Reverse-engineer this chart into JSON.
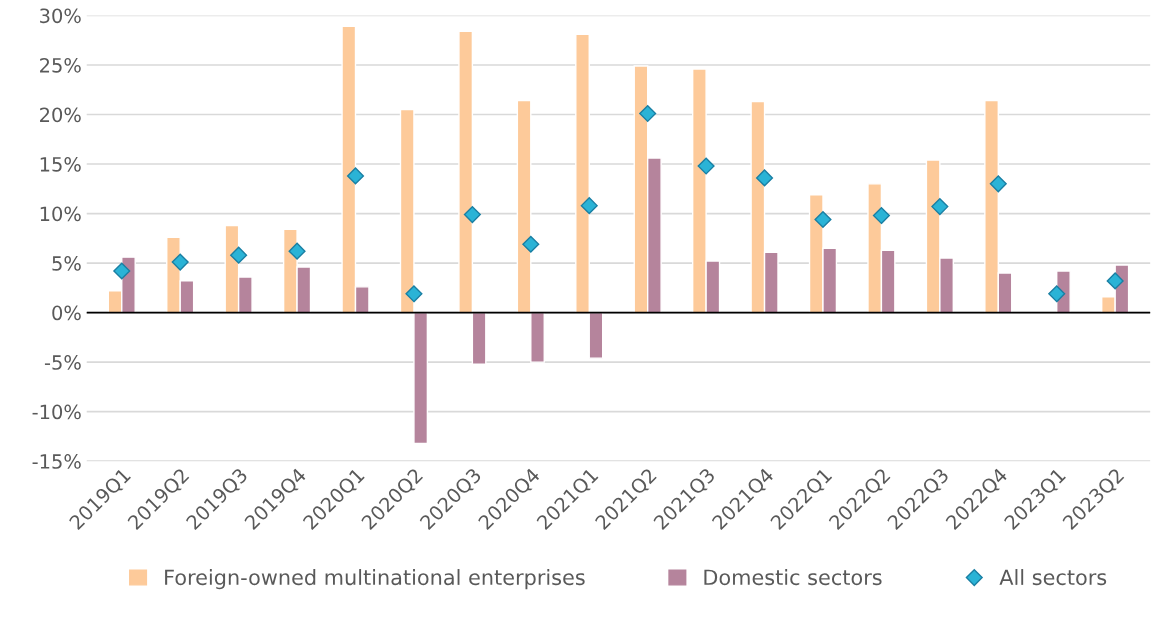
{
  "chart_data": {
    "type": "bar",
    "categories": [
      "2019Q1",
      "2019Q2",
      "2019Q3",
      "2019Q4",
      "2020Q1",
      "2020Q2",
      "2020Q3",
      "2020Q4",
      "2021Q1",
      "2021Q2",
      "2021Q3",
      "2021Q4",
      "2022Q1",
      "2022Q2",
      "2022Q3",
      "2022Q4",
      "2023Q1",
      "2023Q2"
    ],
    "series": [
      {
        "name": "Foreign-owned multinational enterprises",
        "color": "#fdca9a",
        "values": [
          2.2,
          7.6,
          8.8,
          8.4,
          28.9,
          20.5,
          28.4,
          21.4,
          28.1,
          24.9,
          24.6,
          21.3,
          11.9,
          13.0,
          15.4,
          21.4,
          null,
          1.6
        ]
      },
      {
        "name": "Domestic sectors",
        "color": "#b5849c",
        "values": [
          5.6,
          3.2,
          3.6,
          4.6,
          2.6,
          -13.2,
          -5.2,
          -5.0,
          -4.6,
          15.6,
          5.2,
          6.1,
          6.5,
          6.3,
          5.5,
          4.0,
          4.2,
          4.8
        ]
      },
      {
        "name": "All sectors",
        "type": "scatter",
        "color": "#2ab3d6",
        "marker": "diamond",
        "values": [
          4.2,
          5.1,
          5.8,
          6.2,
          13.8,
          1.9,
          9.9,
          6.9,
          10.8,
          20.1,
          14.8,
          13.6,
          9.4,
          9.8,
          10.7,
          13.0,
          1.9,
          3.2
        ]
      }
    ],
    "ylim": [
      -15,
      30
    ],
    "yticks": [
      {
        "value": -15,
        "label": "-15%"
      },
      {
        "value": -10,
        "label": "-10%"
      },
      {
        "value": -5,
        "label": "-5%"
      },
      {
        "value": 0,
        "label": "0%"
      },
      {
        "value": 5,
        "label": "5%"
      },
      {
        "value": 10,
        "label": "10%"
      },
      {
        "value": 15,
        "label": "15%"
      },
      {
        "value": 20,
        "label": "20%"
      },
      {
        "value": 25,
        "label": "25%"
      },
      {
        "value": 30,
        "label": "30%"
      }
    ],
    "grid": "y",
    "legend": "bottom"
  }
}
